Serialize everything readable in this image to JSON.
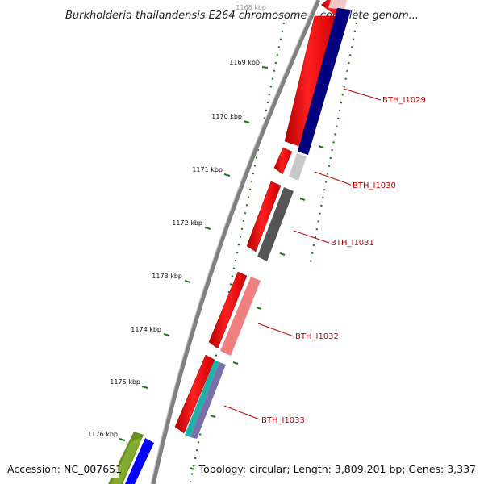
{
  "title": "Burkholderia thailandensis E264 chromosome I, complete genom...",
  "footer": {
    "accession": "Accession: NC_007651",
    "summary": "Topology: circular; Length: 3,809,201 bp; Genes: 3,337"
  },
  "ticks": [
    {
      "kbp": 1168,
      "label": "1168 kbp"
    },
    {
      "kbp": 1169,
      "label": "1169 kbp"
    },
    {
      "kbp": 1170,
      "label": "1170 kbp"
    },
    {
      "kbp": 1171,
      "label": "1171 kbp"
    },
    {
      "kbp": 1172,
      "label": "1172 kbp"
    },
    {
      "kbp": 1173,
      "label": "1173 kbp"
    },
    {
      "kbp": 1174,
      "label": "1174 kbp"
    },
    {
      "kbp": 1175,
      "label": "1175 kbp"
    },
    {
      "kbp": 1176,
      "label": "1176 kbp"
    }
  ],
  "genes": [
    {
      "name": "BTH_I1029",
      "label": "BTH_I1029"
    },
    {
      "name": "BTH_I1030",
      "label": "BTH_I1030"
    },
    {
      "name": "BTH_I1031",
      "label": "BTH_I1031"
    },
    {
      "name": "BTH_I1032",
      "label": "BTH_I1032"
    },
    {
      "name": "BTH_I1033",
      "label": "BTH_I1033"
    }
  ],
  "colors": {
    "backbone": "#808080",
    "cds": "#ff0000",
    "tick_dots": "#1a7a1a",
    "label": "#c00000",
    "cog_navy": "#000080",
    "cog_light_gray": "#c8c8c8",
    "cog_dark_gray": "#555555",
    "cog_pink": "#f08080",
    "cog_teal": "#20b2aa",
    "cog_olive": "#6b8e23",
    "cog_blue": "#0000ff"
  }
}
